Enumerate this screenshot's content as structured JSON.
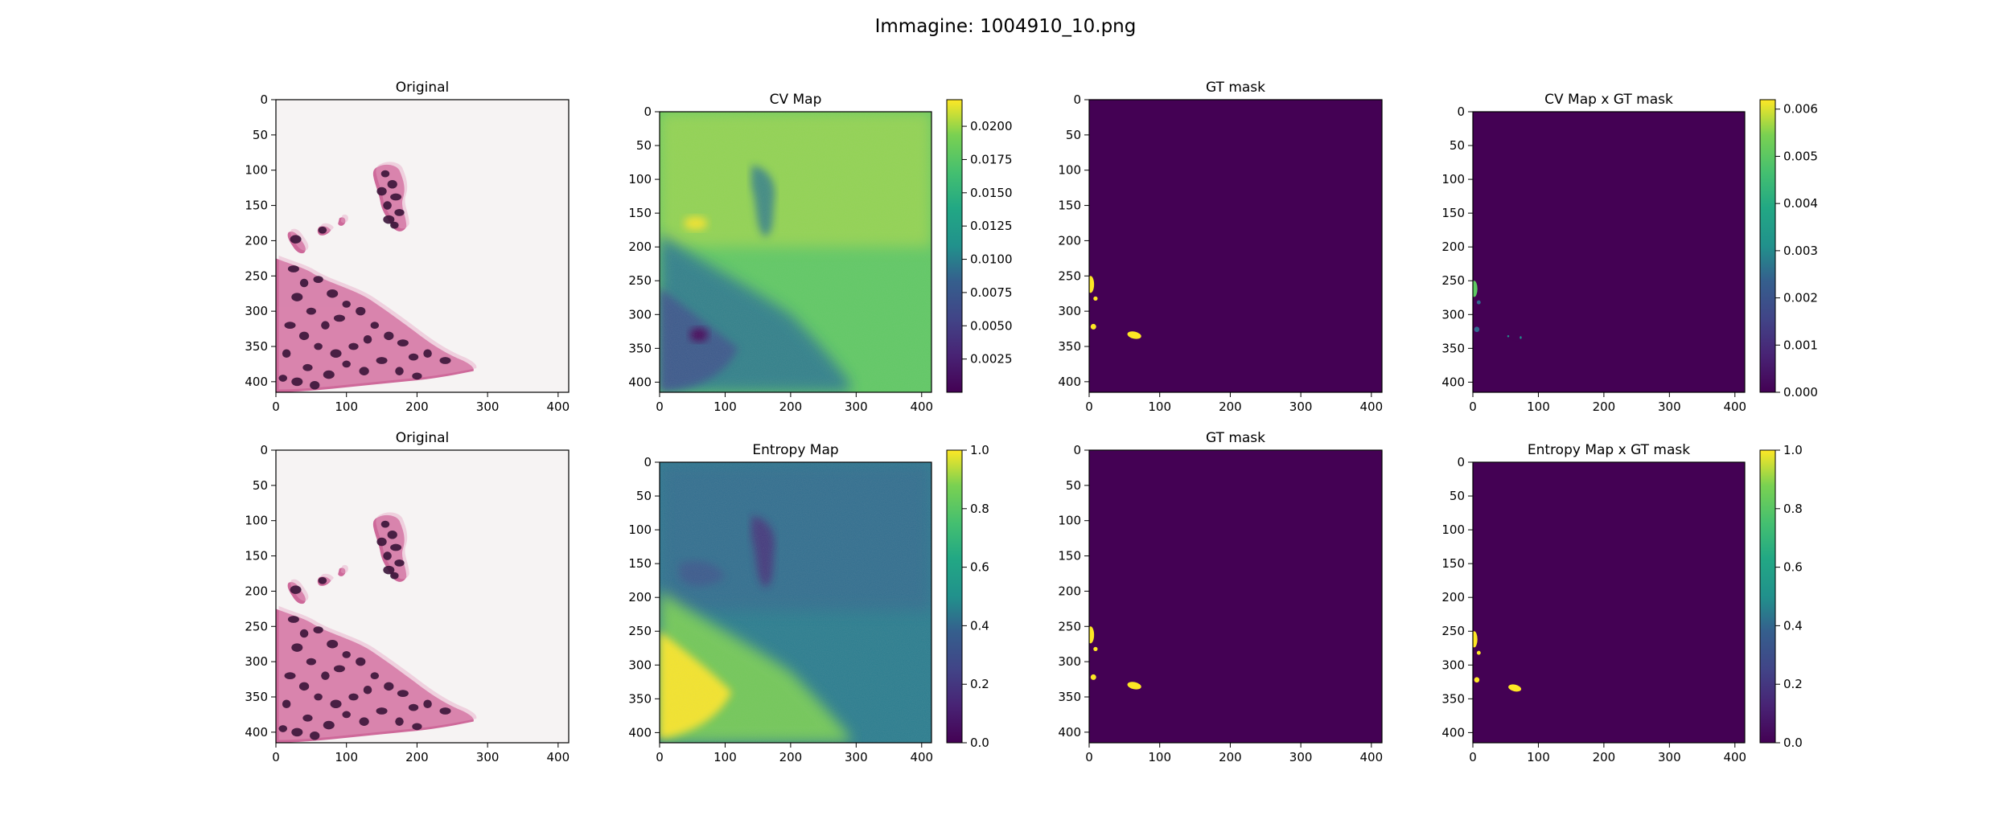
{
  "figure": {
    "suptitle": "Immagine: 1004910_10.png",
    "panels": [
      {
        "title": "Original",
        "kind": "histology",
        "colorbar": null
      },
      {
        "title": "CV Map",
        "kind": "cv",
        "colorbar": {
          "min": 0.0,
          "max": 0.022,
          "ticks": [
            "0.0025",
            "0.0050",
            "0.0075",
            "0.0100",
            "0.0125",
            "0.0150",
            "0.0175",
            "0.0200"
          ],
          "tick_values": [
            0.0025,
            0.005,
            0.0075,
            0.01,
            0.0125,
            0.015,
            0.0175,
            0.02
          ]
        }
      },
      {
        "title": "GT mask",
        "kind": "mask",
        "colorbar": null
      },
      {
        "title": "CV Map x GT mask",
        "kind": "cvmask",
        "colorbar": {
          "min": 0.0,
          "max": 0.0062,
          "ticks": [
            "0.000",
            "0.001",
            "0.002",
            "0.003",
            "0.004",
            "0.005",
            "0.006"
          ],
          "tick_values": [
            0,
            0.001,
            0.002,
            0.003,
            0.004,
            0.005,
            0.006
          ]
        }
      },
      {
        "title": "Original",
        "kind": "histology",
        "colorbar": null
      },
      {
        "title": "Entropy Map",
        "kind": "entropy",
        "colorbar": {
          "min": 0.0,
          "max": 1.0,
          "ticks": [
            "0.0",
            "0.2",
            "0.4",
            "0.6",
            "0.8",
            "1.0"
          ],
          "tick_values": [
            0,
            0.2,
            0.4,
            0.6,
            0.8,
            1.0
          ]
        }
      },
      {
        "title": "GT mask",
        "kind": "mask",
        "colorbar": null
      },
      {
        "title": "Entropy Map x GT mask",
        "kind": "entmask",
        "colorbar": {
          "min": 0.0,
          "max": 1.0,
          "ticks": [
            "0.0",
            "0.2",
            "0.4",
            "0.6",
            "0.8",
            "1.0"
          ],
          "tick_values": [
            0,
            0.2,
            0.4,
            0.6,
            0.8,
            1.0
          ]
        }
      }
    ],
    "axis_ticks": [
      "0",
      "50",
      "100",
      "150",
      "200",
      "250",
      "300",
      "350",
      "400"
    ],
    "axis_x_ticks": [
      "0",
      "100",
      "200",
      "300",
      "400"
    ],
    "image_extent": [
      0,
      415
    ],
    "colormap": "viridis",
    "colors": {
      "viridis_low": "#440154",
      "viridis_high": "#fde725",
      "tissue_pink": "#c7508a",
      "nuclei": "#3a1438",
      "background": "#f6f3f3"
    }
  }
}
